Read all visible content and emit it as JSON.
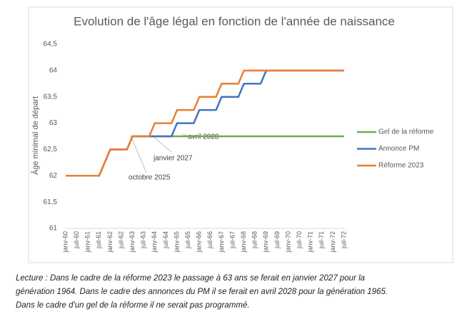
{
  "chart_data": {
    "type": "line",
    "title": "Evolution de l'âge légal en fonction de l'année de naissance",
    "y_label": "Âge minimal de départ",
    "categories": [
      "janv-60",
      null,
      "juil-60",
      null,
      "janv-61",
      null,
      "juil-61",
      null,
      "janv-62",
      null,
      "juil-62",
      null,
      "janv-63",
      null,
      "juil-63",
      null,
      "janv-64",
      null,
      "juil-64",
      null,
      "janv-65",
      null,
      "juil-65",
      null,
      "janv-66",
      null,
      "juil-66",
      null,
      "janv-67",
      null,
      "juil-67",
      null,
      "janv-68",
      null,
      "juil-68",
      null,
      "janv-69",
      null,
      "juil-69",
      null,
      "janv-70",
      null,
      "juil-70",
      null,
      "janv-71",
      null,
      "juil-71",
      null,
      "janv-72",
      null,
      "juil-72"
    ],
    "series": [
      {
        "name": "Gel de la réforme",
        "color": "#70ad47",
        "values": [
          62,
          62,
          62,
          62,
          62,
          62,
          62,
          62.25,
          62.5,
          62.5,
          62.5,
          62.5,
          62.75,
          62.75,
          62.75,
          62.75,
          62.75,
          62.75,
          62.75,
          62.75,
          62.75,
          62.75,
          62.75,
          62.75,
          62.75,
          62.75,
          62.75,
          62.75,
          62.75,
          62.75,
          62.75,
          62.75,
          62.75,
          62.75,
          62.75,
          62.75,
          62.75,
          62.75,
          62.75,
          62.75,
          62.75,
          62.75,
          62.75,
          62.75,
          62.75,
          62.75,
          62.75,
          62.75,
          62.75,
          62.75,
          62.75
        ]
      },
      {
        "name": "Annonce PM",
        "color": "#4472c4",
        "values": [
          62,
          62,
          62,
          62,
          62,
          62,
          62,
          62.25,
          62.5,
          62.5,
          62.5,
          62.5,
          62.75,
          62.75,
          62.75,
          62.75,
          62.75,
          62.75,
          62.75,
          62.75,
          63,
          63,
          63,
          63,
          63.25,
          63.25,
          63.25,
          63.25,
          63.5,
          63.5,
          63.5,
          63.5,
          63.75,
          63.75,
          63.75,
          63.75,
          64,
          64,
          64,
          64,
          64,
          64,
          64,
          64,
          64,
          64,
          64,
          64,
          64,
          64,
          64
        ]
      },
      {
        "name": "Réforme 2023",
        "color": "#ed7d31",
        "values": [
          62,
          62,
          62,
          62,
          62,
          62,
          62,
          62.25,
          62.5,
          62.5,
          62.5,
          62.5,
          62.75,
          62.75,
          62.75,
          62.75,
          63,
          63,
          63,
          63,
          63.25,
          63.25,
          63.25,
          63.25,
          63.5,
          63.5,
          63.5,
          63.5,
          63.75,
          63.75,
          63.75,
          63.75,
          64,
          64,
          64,
          64,
          64,
          64,
          64,
          64,
          64,
          64,
          64,
          64,
          64,
          64,
          64,
          64,
          64,
          64,
          64
        ]
      }
    ],
    "ylim": [
      61,
      64.5
    ],
    "yticks": [
      61,
      {
        "value": 61.5,
        "label": "61,5"
      },
      62,
      {
        "value": 62.5,
        "label": "62,5"
      },
      63,
      {
        "value": 63.5,
        "label": "63,5"
      },
      64,
      {
        "value": 64.5,
        "label": "64,5"
      }
    ],
    "grid": false,
    "annotations": [
      "avril 2028",
      "janvier 2027",
      "octobre 2025"
    ]
  },
  "caption_lines": [
    "Lecture : Dans le cadre de la réforme 2023 le passage à 63 ans se ferait en janvier 2027 pour la",
    "génération 1964. Dans le cadre des annonces du PM il se ferait en avril 2028 pour la génération 1965.",
    "Dans le cadre d'un gel de la réforme il ne serait pas programmé."
  ]
}
